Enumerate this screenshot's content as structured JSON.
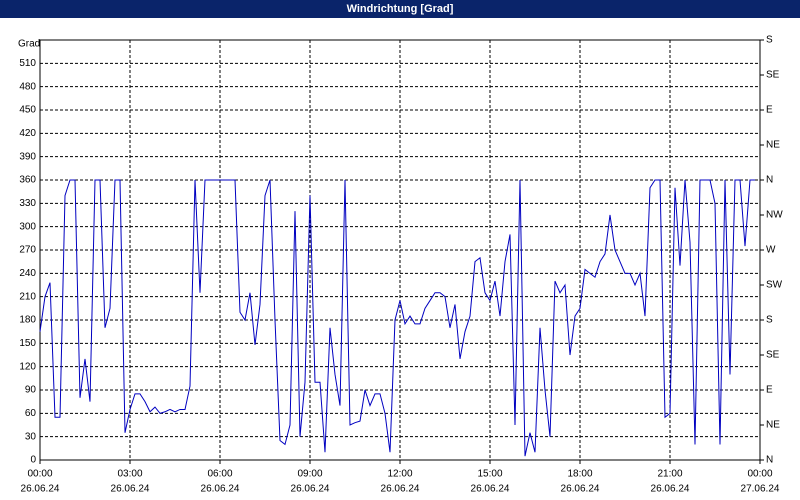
{
  "chart_data": {
    "type": "line",
    "title": "Windrichtung [Grad]",
    "y_label": "Grad",
    "x": [
      0,
      10,
      20,
      30,
      40,
      50,
      60,
      70,
      80,
      90,
      100,
      110,
      120,
      130,
      140,
      150,
      160,
      170,
      180,
      190,
      200,
      210,
      220,
      230,
      240,
      250,
      260,
      270,
      280,
      290,
      300,
      310,
      320,
      330,
      340,
      350,
      360,
      370,
      380,
      390,
      400,
      410,
      420,
      430,
      440,
      450,
      460,
      470,
      480,
      490,
      500,
      510,
      520,
      530,
      540,
      550,
      560,
      570,
      580,
      590,
      600,
      610,
      620,
      630,
      640,
      650,
      660,
      670,
      680,
      690,
      700,
      710,
      720,
      730,
      740,
      750,
      760,
      770,
      780,
      790,
      800,
      810,
      820,
      830,
      840,
      850,
      860,
      870,
      880,
      890,
      900,
      910,
      920,
      930,
      940,
      950,
      960,
      970,
      980,
      990,
      1000,
      1010,
      1020,
      1030,
      1040,
      1050,
      1060,
      1070,
      1080,
      1090,
      1100,
      1110,
      1120,
      1130,
      1140,
      1150,
      1160,
      1170,
      1180,
      1190,
      1200,
      1210,
      1220,
      1230,
      1240,
      1250,
      1260,
      1270,
      1280,
      1290,
      1300,
      1310,
      1320,
      1330,
      1340,
      1350,
      1360,
      1370,
      1380,
      1390,
      1400,
      1410,
      1420,
      1430
    ],
    "series": [
      {
        "name": "Windrichtung",
        "color": "#0000c0",
        "values": [
          165,
          210,
          228,
          55,
          55,
          340,
          360,
          360,
          80,
          130,
          75,
          360,
          360,
          170,
          195,
          360,
          360,
          35,
          65,
          85,
          85,
          75,
          62,
          68,
          60,
          62,
          65,
          62,
          65,
          65,
          95,
          360,
          215,
          360,
          360,
          360,
          360,
          360,
          360,
          360,
          190,
          180,
          215,
          148,
          200,
          340,
          360,
          180,
          25,
          20,
          45,
          320,
          30,
          100,
          340,
          100,
          100,
          10,
          170,
          110,
          70,
          360,
          45,
          48,
          50,
          90,
          70,
          85,
          85,
          60,
          10,
          180,
          205,
          175,
          185,
          175,
          175,
          195,
          205,
          215,
          215,
          210,
          170,
          200,
          130,
          165,
          185,
          255,
          260,
          215,
          205,
          230,
          185,
          255,
          290,
          45,
          360,
          5,
          35,
          10,
          170,
          90,
          30,
          230,
          215,
          225,
          135,
          185,
          195,
          245,
          240,
          235,
          255,
          265,
          315,
          270,
          255,
          240,
          240,
          225,
          240,
          185,
          350,
          360,
          360,
          55,
          60,
          350,
          250,
          360,
          280,
          20,
          360,
          360,
          360,
          330,
          20,
          360,
          110,
          360,
          360,
          275,
          360,
          360
        ]
      }
    ],
    "xlim": [
      0,
      1440
    ],
    "xticks": [
      {
        "value": 0,
        "label": "00:00",
        "date": "26.06.24"
      },
      {
        "value": 180,
        "label": "03:00",
        "date": "26.06.24"
      },
      {
        "value": 360,
        "label": "06:00",
        "date": "26.06.24"
      },
      {
        "value": 540,
        "label": "09:00",
        "date": "26.06.24"
      },
      {
        "value": 720,
        "label": "12:00",
        "date": "26.06.24"
      },
      {
        "value": 900,
        "label": "15:00",
        "date": "26.06.24"
      },
      {
        "value": 1080,
        "label": "18:00",
        "date": "26.06.24"
      },
      {
        "value": 1260,
        "label": "21:00",
        "date": "26.06.24"
      },
      {
        "value": 1440,
        "label": "00:00",
        "date": "27.06.24"
      }
    ],
    "ylim": [
      0,
      540
    ],
    "yticks": [
      0,
      30,
      60,
      90,
      120,
      150,
      180,
      210,
      240,
      270,
      300,
      330,
      360,
      390,
      420,
      450,
      480,
      510
    ],
    "y2lim": [
      0,
      540
    ],
    "y2ticks": [
      {
        "value": 0,
        "label": "N"
      },
      {
        "value": 45,
        "label": "NE"
      },
      {
        "value": 90,
        "label": "E"
      },
      {
        "value": 135,
        "label": "SE"
      },
      {
        "value": 180,
        "label": "S"
      },
      {
        "value": 225,
        "label": "SW"
      },
      {
        "value": 270,
        "label": "W"
      },
      {
        "value": 315,
        "label": "NW"
      },
      {
        "value": 360,
        "label": "N"
      },
      {
        "value": 405,
        "label": "NE"
      },
      {
        "value": 450,
        "label": "E"
      },
      {
        "value": 495,
        "label": "SE"
      },
      {
        "value": 540,
        "label": "S"
      }
    ],
    "grid": true
  }
}
